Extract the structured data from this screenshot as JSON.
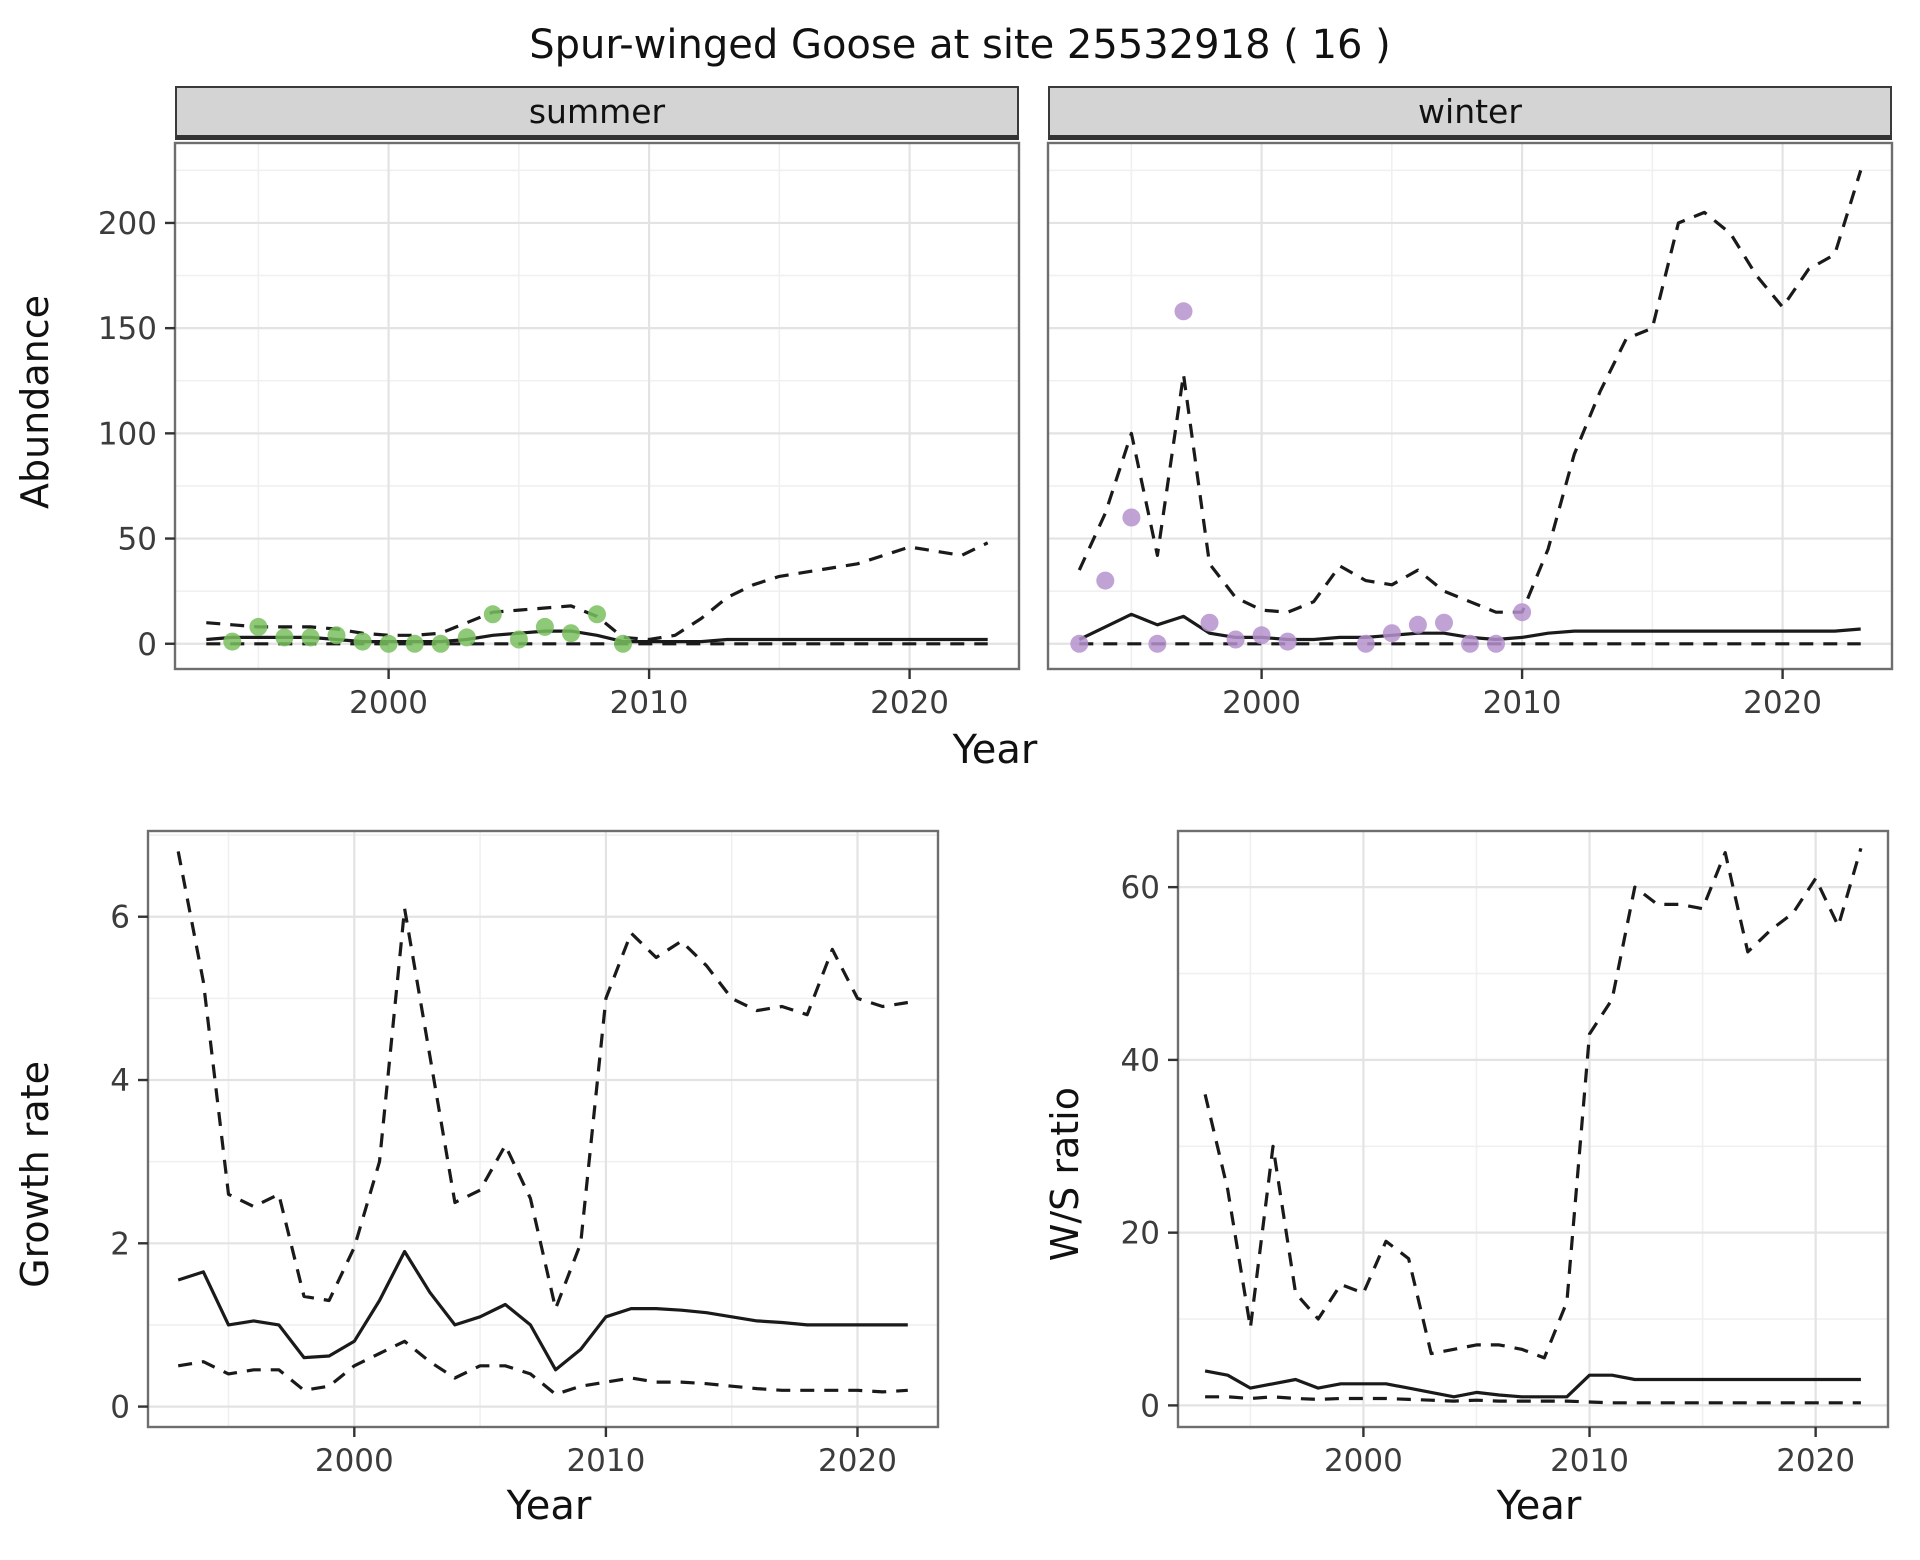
{
  "title": "Spur-winged Goose at site 25532918 ( 16 )",
  "theme": {
    "grid_major": "#e3e3e3",
    "grid_minor": "#f0f0f0",
    "panel_border": "#6e6e6e",
    "line": "#1a1a1a",
    "strip_bg": "#d4d4d4",
    "summer_point_color": "#79bf5e",
    "winter_point_color": "#b592ce"
  },
  "chart_data": [
    {
      "id": "summer-abundance",
      "type": "line",
      "title": "summer",
      "xlabel": "Year",
      "ylabel": "Abundance",
      "xlim": [
        1991.8,
        2024.2
      ],
      "ylim": [
        -12,
        238
      ],
      "xticks": [
        2000,
        2010,
        2020
      ],
      "xminor": [
        1995,
        2005,
        2015
      ],
      "yticks": [
        0,
        50,
        100,
        150,
        200
      ],
      "yminor": [
        25,
        75,
        125,
        175,
        225
      ],
      "grid": true,
      "legend": "none",
      "x": [
        1993,
        1994,
        1995,
        1996,
        1997,
        1998,
        1999,
        2000,
        2001,
        2002,
        2003,
        2004,
        2005,
        2006,
        2007,
        2008,
        2009,
        2010,
        2011,
        2012,
        2013,
        2014,
        2015,
        2016,
        2017,
        2018,
        2019,
        2020,
        2021,
        2022,
        2023
      ],
      "series": [
        {
          "name": "upper_ci",
          "style": "dashed",
          "values": [
            10,
            9,
            8,
            8,
            8,
            7,
            5,
            4,
            4,
            5,
            10,
            15,
            16,
            17,
            18,
            13,
            3,
            2,
            4,
            12,
            22,
            28,
            32,
            34,
            36,
            38,
            42,
            46,
            44,
            42,
            48
          ]
        },
        {
          "name": "median",
          "style": "solid",
          "values": [
            2,
            3,
            3,
            3,
            3,
            2,
            1,
            1,
            1,
            1,
            2,
            4,
            5,
            6,
            6,
            4,
            1,
            1,
            1,
            1,
            2,
            2,
            2,
            2,
            2,
            2,
            2,
            2,
            2,
            2,
            2
          ]
        },
        {
          "name": "lower_ci",
          "style": "dashed",
          "values": [
            0,
            0,
            0,
            0,
            0,
            0,
            0,
            0,
            0,
            0,
            0,
            0,
            0,
            0,
            0,
            0,
            0,
            0,
            0,
            0,
            0,
            0,
            0,
            0,
            0,
            0,
            0,
            0,
            0,
            0,
            0
          ]
        }
      ],
      "points": {
        "name": "observed_counts",
        "color": "#79bf5e",
        "x": [
          1994,
          1995,
          1996,
          1997,
          1998,
          1999,
          2000,
          2001,
          2002,
          2003,
          2004,
          2005,
          2006,
          2007,
          2008,
          2009
        ],
        "y": [
          1,
          8,
          3,
          3,
          4,
          1,
          0,
          0,
          0,
          3,
          14,
          2,
          8,
          5,
          14,
          0
        ]
      }
    },
    {
      "id": "winter-abundance",
      "type": "line",
      "title": "winter",
      "xlabel": "Year",
      "ylabel": "Abundance",
      "xlim": [
        1991.8,
        2024.2
      ],
      "ylim": [
        -12,
        238
      ],
      "xticks": [
        2000,
        2010,
        2020
      ],
      "xminor": [
        1995,
        2005,
        2015
      ],
      "yticks": [
        0,
        50,
        100,
        150,
        200
      ],
      "yminor": [
        25,
        75,
        125,
        175,
        225
      ],
      "grid": true,
      "legend": "none",
      "x": [
        1993,
        1994,
        1995,
        1996,
        1997,
        1998,
        1999,
        2000,
        2001,
        2002,
        2003,
        2004,
        2005,
        2006,
        2007,
        2008,
        2009,
        2010,
        2011,
        2012,
        2013,
        2014,
        2015,
        2016,
        2017,
        2018,
        2019,
        2020,
        2021,
        2022,
        2023
      ],
      "series": [
        {
          "name": "upper_ci",
          "style": "dashed",
          "values": [
            35,
            62,
            100,
            42,
            128,
            38,
            22,
            16,
            15,
            20,
            37,
            30,
            28,
            35,
            25,
            20,
            15,
            15,
            45,
            90,
            120,
            145,
            150,
            200,
            205,
            195,
            175,
            160,
            178,
            185,
            225
          ]
        },
        {
          "name": "median",
          "style": "solid",
          "values": [
            2,
            8,
            14,
            9,
            13,
            5,
            3,
            3,
            2,
            2,
            3,
            3,
            4,
            5,
            5,
            3,
            2,
            3,
            5,
            6,
            6,
            6,
            6,
            6,
            6,
            6,
            6,
            6,
            6,
            6,
            7
          ]
        },
        {
          "name": "lower_ci",
          "style": "dashed",
          "values": [
            0,
            0,
            0,
            0,
            0,
            0,
            0,
            0,
            0,
            0,
            0,
            0,
            0,
            0,
            0,
            0,
            0,
            0,
            0,
            0,
            0,
            0,
            0,
            0,
            0,
            0,
            0,
            0,
            0,
            0,
            0
          ]
        }
      ],
      "points": {
        "name": "observed_counts",
        "color": "#b592ce",
        "x": [
          1993,
          1994,
          1995,
          1996,
          1997,
          1998,
          1999,
          2000,
          2001,
          2004,
          2005,
          2006,
          2007,
          2008,
          2009,
          2010
        ],
        "y": [
          0,
          30,
          60,
          0,
          158,
          10,
          2,
          4,
          1,
          0,
          5,
          9,
          10,
          0,
          0,
          15
        ]
      }
    },
    {
      "id": "growth-rate",
      "type": "line",
      "title": "Growth rate",
      "xlabel": "Year",
      "ylabel": "Growth rate",
      "xlim": [
        1991.8,
        2023.2
      ],
      "ylim": [
        -0.25,
        7.05
      ],
      "xticks": [
        2000,
        2010,
        2020
      ],
      "xminor": [
        1995,
        2005,
        2015
      ],
      "yticks": [
        0,
        2,
        4,
        6
      ],
      "yminor": [
        1,
        3,
        5,
        7
      ],
      "grid": true,
      "legend": "none",
      "x": [
        1993,
        1994,
        1995,
        1996,
        1997,
        1998,
        1999,
        2000,
        2001,
        2002,
        2003,
        2004,
        2005,
        2006,
        2007,
        2008,
        2009,
        2010,
        2011,
        2012,
        2013,
        2014,
        2015,
        2016,
        2017,
        2018,
        2019,
        2020,
        2021,
        2022
      ],
      "series": [
        {
          "name": "upper_ci",
          "style": "dashed",
          "values": [
            6.8,
            5.2,
            2.6,
            2.45,
            2.6,
            1.35,
            1.3,
            1.95,
            3.0,
            6.1,
            4.3,
            2.5,
            2.65,
            3.2,
            2.55,
            1.2,
            2.0,
            5.0,
            5.8,
            5.5,
            5.7,
            5.4,
            5.0,
            4.85,
            4.9,
            4.8,
            5.6,
            5.0,
            4.9,
            4.95
          ]
        },
        {
          "name": "median",
          "style": "solid",
          "values": [
            1.55,
            1.65,
            1.0,
            1.05,
            1.0,
            0.6,
            0.62,
            0.8,
            1.3,
            1.9,
            1.4,
            1.0,
            1.1,
            1.25,
            1.0,
            0.45,
            0.7,
            1.1,
            1.2,
            1.2,
            1.18,
            1.15,
            1.1,
            1.05,
            1.03,
            1.0,
            1.0,
            1.0,
            1.0,
            1.0
          ]
        },
        {
          "name": "lower_ci",
          "style": "dashed",
          "values": [
            0.5,
            0.55,
            0.4,
            0.45,
            0.45,
            0.2,
            0.25,
            0.5,
            0.65,
            0.8,
            0.55,
            0.35,
            0.5,
            0.5,
            0.4,
            0.15,
            0.25,
            0.3,
            0.35,
            0.3,
            0.3,
            0.28,
            0.25,
            0.22,
            0.2,
            0.2,
            0.2,
            0.2,
            0.18,
            0.2
          ]
        }
      ]
    },
    {
      "id": "ws-ratio",
      "type": "line",
      "title": "W/S ratio",
      "xlabel": "Year",
      "ylabel": "W/S ratio",
      "xlim": [
        1991.8,
        2023.2
      ],
      "ylim": [
        -2.5,
        66.5
      ],
      "xticks": [
        2000,
        2010,
        2020
      ],
      "xminor": [
        1995,
        2005,
        2015
      ],
      "yticks": [
        0,
        20,
        40,
        60
      ],
      "yminor": [
        10,
        30,
        50
      ],
      "grid": true,
      "legend": "none",
      "x": [
        1993,
        1994,
        1995,
        1996,
        1997,
        1998,
        1999,
        2000,
        2001,
        2002,
        2003,
        2004,
        2005,
        2006,
        2007,
        2008,
        2009,
        2010,
        2011,
        2012,
        2013,
        2014,
        2015,
        2016,
        2017,
        2018,
        2019,
        2020,
        2021,
        2022
      ],
      "series": [
        {
          "name": "upper_ci",
          "style": "dashed",
          "values": [
            36,
            25,
            9,
            30,
            13,
            10,
            14,
            13,
            19,
            17,
            6,
            6.5,
            7,
            7,
            6.5,
            5.5,
            12,
            43,
            47,
            60,
            58,
            58,
            57.5,
            64,
            52.5,
            55,
            57,
            61,
            55.5,
            64.5
          ]
        },
        {
          "name": "median",
          "style": "solid",
          "values": [
            4,
            3.5,
            2,
            2.5,
            3,
            2,
            2.5,
            2.5,
            2.5,
            2,
            1.5,
            1,
            1.5,
            1.2,
            1,
            1,
            1,
            3.5,
            3.5,
            3,
            3,
            3,
            3,
            3,
            3,
            3,
            3,
            3,
            3,
            3
          ]
        },
        {
          "name": "lower_ci",
          "style": "dashed",
          "values": [
            1,
            1,
            0.8,
            1,
            0.8,
            0.7,
            0.8,
            0.8,
            0.8,
            0.7,
            0.6,
            0.5,
            0.6,
            0.5,
            0.5,
            0.5,
            0.5,
            0.4,
            0.3,
            0.3,
            0.3,
            0.3,
            0.3,
            0.3,
            0.3,
            0.3,
            0.3,
            0.3,
            0.3,
            0.3
          ]
        }
      ]
    }
  ]
}
